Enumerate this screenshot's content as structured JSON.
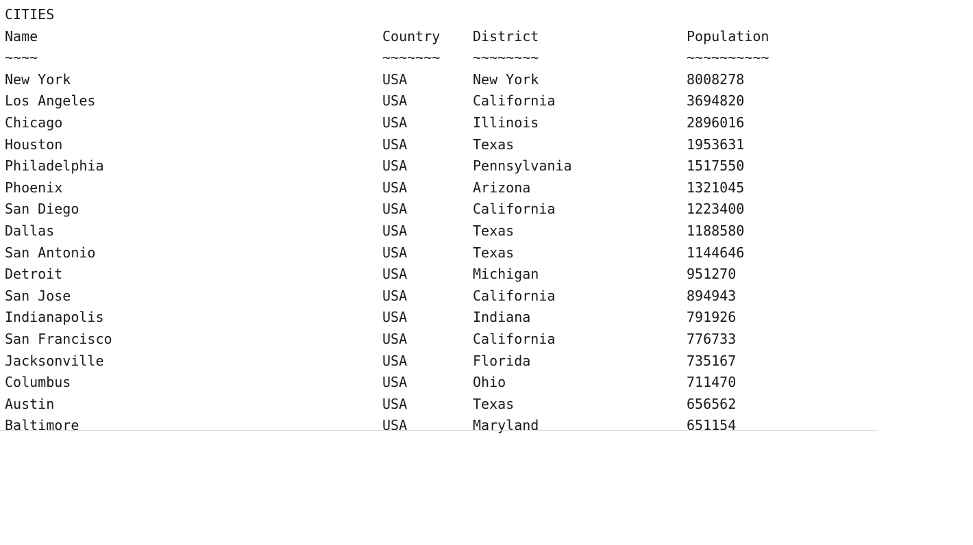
{
  "title": "CITIES",
  "headers": {
    "name": "Name",
    "country": "Country",
    "district": "District",
    "population": "Population"
  },
  "underlines": {
    "name": "~~~~",
    "country": "~~~~~~~",
    "district": "~~~~~~~~",
    "population": "~~~~~~~~~~"
  },
  "rows": [
    {
      "name": "New York",
      "country": "USA",
      "district": "New York",
      "population": "8008278"
    },
    {
      "name": "Los Angeles",
      "country": "USA",
      "district": "California",
      "population": "3694820"
    },
    {
      "name": "Chicago",
      "country": "USA",
      "district": "Illinois",
      "population": "2896016"
    },
    {
      "name": "Houston",
      "country": "USA",
      "district": "Texas",
      "population": "1953631"
    },
    {
      "name": "Philadelphia",
      "country": "USA",
      "district": "Pennsylvania",
      "population": "1517550"
    },
    {
      "name": "Phoenix",
      "country": "USA",
      "district": "Arizona",
      "population": "1321045"
    },
    {
      "name": "San Diego",
      "country": "USA",
      "district": "California",
      "population": "1223400"
    },
    {
      "name": "Dallas",
      "country": "USA",
      "district": "Texas",
      "population": "1188580"
    },
    {
      "name": "San Antonio",
      "country": "USA",
      "district": "Texas",
      "population": "1144646"
    },
    {
      "name": "Detroit",
      "country": "USA",
      "district": "Michigan",
      "population": "951270"
    },
    {
      "name": "San Jose",
      "country": "USA",
      "district": "California",
      "population": "894943"
    },
    {
      "name": "Indianapolis",
      "country": "USA",
      "district": "Indiana",
      "population": "791926"
    },
    {
      "name": "San Francisco",
      "country": "USA",
      "district": "California",
      "population": "776733"
    },
    {
      "name": "Jacksonville",
      "country": "USA",
      "district": "Florida",
      "population": "735167"
    },
    {
      "name": "Columbus",
      "country": "USA",
      "district": "Ohio",
      "population": "711470"
    },
    {
      "name": "Austin",
      "country": "USA",
      "district": "Texas",
      "population": "656562"
    },
    {
      "name": "Baltimore",
      "country": "USA",
      "district": "Maryland",
      "population": "651154"
    }
  ]
}
